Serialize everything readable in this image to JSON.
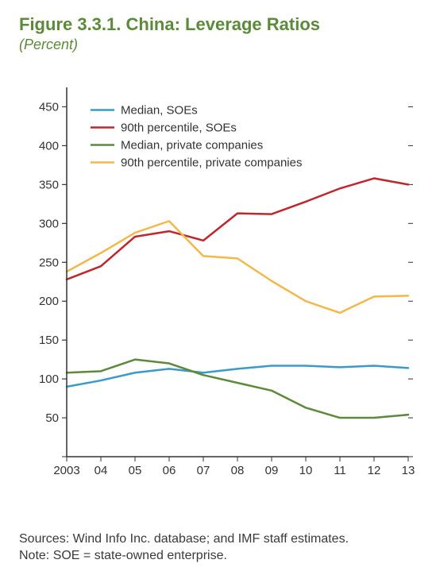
{
  "title": "Figure 3.3.1. China: Leverage Ratios",
  "subtitle": "(Percent)",
  "sources": "Sources: Wind Info Inc. database; and IMF staff estimates.",
  "note": "Note: SOE = state-owned enterprise.",
  "chart": {
    "type": "line",
    "x_labels": [
      "2003",
      "04",
      "05",
      "06",
      "07",
      "08",
      "09",
      "10",
      "11",
      "12",
      "13"
    ],
    "ylim": [
      0,
      475
    ],
    "y_ticks": [
      0,
      50,
      100,
      150,
      200,
      250,
      300,
      350,
      400,
      450
    ],
    "y_tick_start_label": 50,
    "series": [
      {
        "name": "Median, SOEs",
        "legend": "Median, SOEs",
        "color": "#3a9acb",
        "values": [
          90,
          98,
          108,
          113,
          108,
          113,
          117,
          117,
          115,
          117,
          114
        ]
      },
      {
        "name": "90th percentile, SOEs",
        "legend": "90th percentile, SOEs",
        "color": "#c0272d",
        "values": [
          228,
          245,
          283,
          290,
          278,
          313,
          312,
          328,
          345,
          358,
          350
        ]
      },
      {
        "name": "Median, private companies",
        "legend": "Median, private companies",
        "color": "#5c8a3a",
        "values": [
          108,
          110,
          125,
          120,
          105,
          95,
          85,
          63,
          50,
          50,
          54
        ]
      },
      {
        "name": "90th percentile, private companies",
        "legend": "90th percentile, private companies",
        "color": "#f2b84b",
        "values": [
          238,
          262,
          288,
          303,
          258,
          255,
          226,
          200,
          185,
          206,
          207
        ]
      }
    ],
    "line_width": 2.5,
    "legend_line_length": 30,
    "background_color": "#ffffff",
    "axis_color": "#333333",
    "label_fontsize": 15,
    "title_color": "#5c8a3a"
  }
}
